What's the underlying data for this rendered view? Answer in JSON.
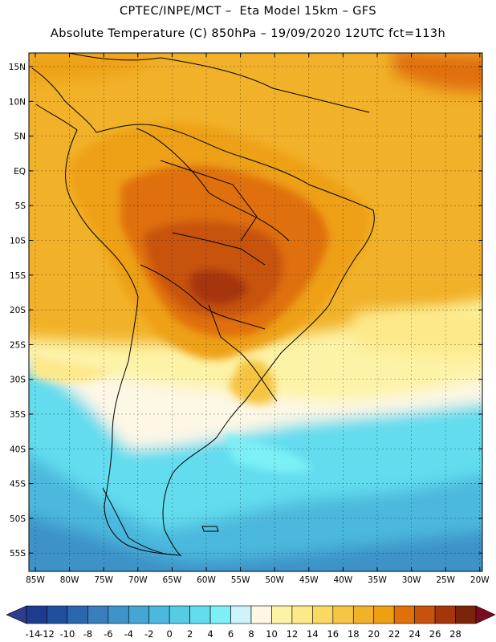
{
  "header": {
    "line1": "CPTEC/INPE/MCT –  Eta Model 15km – GFS",
    "line2": "Absolute Temperature (C) 850hPa – 19/09/2020 12UTC fct=113h"
  },
  "map": {
    "lat_labels": [
      "15N",
      "10N",
      "5N",
      "EQ",
      "5S",
      "10S",
      "15S",
      "20S",
      "25S",
      "30S",
      "35S",
      "40S",
      "45S",
      "50S",
      "55S"
    ],
    "lon_labels": [
      "85W",
      "80W",
      "75W",
      "70W",
      "65W",
      "60W",
      "55W",
      "50W",
      "45W",
      "40W",
      "35W",
      "30W",
      "25W",
      "20W"
    ]
  },
  "colorbar": {
    "labels": [
      "-14",
      "-12",
      "-10",
      "-8",
      "-6",
      "-4",
      "-2",
      "0",
      "2",
      "4",
      "6",
      "8",
      "10",
      "12",
      "14",
      "16",
      "18",
      "20",
      "22",
      "24",
      "26",
      "28"
    ],
    "colors": [
      "#1f3b8f",
      "#1f4f9e",
      "#2a68ad",
      "#3a7fbd",
      "#3e93c8",
      "#43a6d3",
      "#4bb8dd",
      "#55cbe6",
      "#62dcee",
      "#7cf0f6",
      "#cdf3fb",
      "#fdf7e6",
      "#fdf3a6",
      "#fde98a",
      "#fbd864",
      "#f5c543",
      "#f1b129",
      "#eea013",
      "#e0700b",
      "#c8520d",
      "#a5360b",
      "#7c2409"
    ],
    "low_color": "#2d3c8c",
    "high_color": "#7a0b1e"
  }
}
